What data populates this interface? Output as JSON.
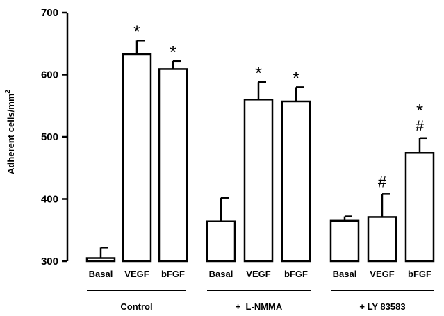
{
  "chart_data": {
    "type": "bar",
    "ylabel": "Adherent cells/mm",
    "ylabel_superscript": "2",
    "ylim": [
      300,
      700
    ],
    "yticks": [
      300,
      400,
      500,
      600,
      700
    ],
    "grid": false,
    "groups": [
      {
        "name": "Control",
        "categories": [
          "Basal",
          "VEGF",
          "bFGF"
        ]
      },
      {
        "name": "+  L-NMMA",
        "categories": [
          "Basal",
          "VEGF",
          "bFGF"
        ]
      },
      {
        "name": "+ LY 83583",
        "categories": [
          "Basal",
          "VEGF",
          "bFGF"
        ]
      }
    ],
    "values": [
      305,
      633,
      609,
      364,
      560,
      557,
      365,
      371,
      474
    ],
    "errors": [
      17,
      22,
      13,
      38,
      28,
      23,
      7,
      37,
      24
    ],
    "markers": [
      [],
      [
        "*"
      ],
      [
        "*"
      ],
      [],
      [
        "*"
      ],
      [
        "*"
      ],
      [],
      [
        "#"
      ],
      [
        "*",
        "#"
      ]
    ]
  }
}
